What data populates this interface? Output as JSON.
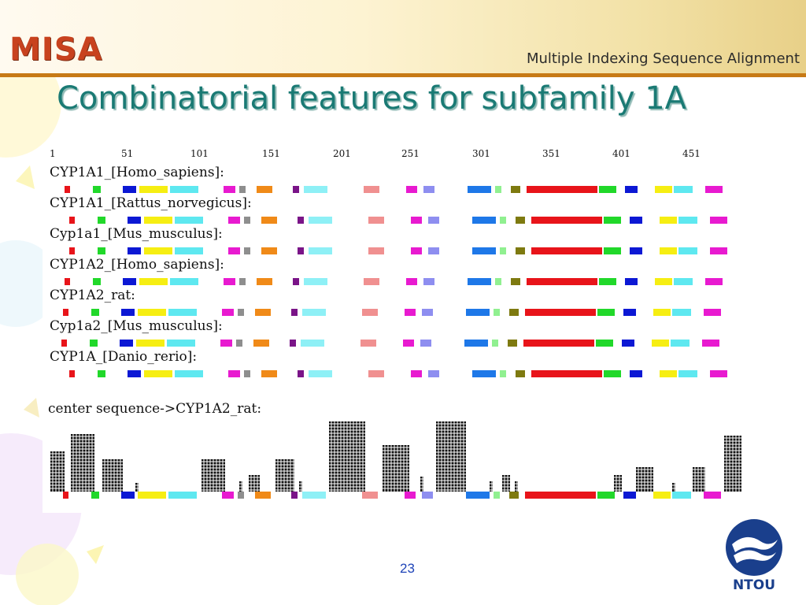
{
  "header": {
    "logo_text": "MISA",
    "subtitle": "Multiple Indexing Sequence Alignment"
  },
  "slide": {
    "title": "Combinatorial features for subfamily 1A",
    "page_number": "23"
  },
  "figure": {
    "position_ticks": [
      "1",
      "51",
      "101",
      "151",
      "201",
      "251",
      "301",
      "351",
      "401",
      "451"
    ],
    "sequences": [
      {
        "name": "CYP1A1_[Homo_sapiens]:"
      },
      {
        "name": "CYP1A1_[Rattus_norvegicus]:"
      },
      {
        "name": "Cyp1a1_[Mus_musculus]:"
      },
      {
        "name": "CYP1A2_[Homo_sapiens]:"
      },
      {
        "name": "CYP1A2_rat:"
      },
      {
        "name": "Cyp1a2_[Mus_musculus]:"
      },
      {
        "name": "CYP1A_[Danio_rerio]:"
      }
    ],
    "center_label": "center sequence->CYP1A2_rat:",
    "feature_colors": {
      "red": "#e8141a",
      "green": "#21d82a",
      "blue": "#0c18d4",
      "yellow": "#f6ee12",
      "cyan": "#5ee8f0",
      "magenta": "#e81ad0",
      "gray": "#8e8e8e",
      "orange": "#f08a18",
      "purple": "#7a1488",
      "light_cyan": "#8ef0f6",
      "pink": "#f09090",
      "violet": "#8e8ef0",
      "azure": "#1e78e8",
      "light_green": "#90f090",
      "olive": "#7e7a10"
    }
  },
  "footer": {
    "institution": "NTOU",
    "primary_color": "#1a3f8c"
  }
}
